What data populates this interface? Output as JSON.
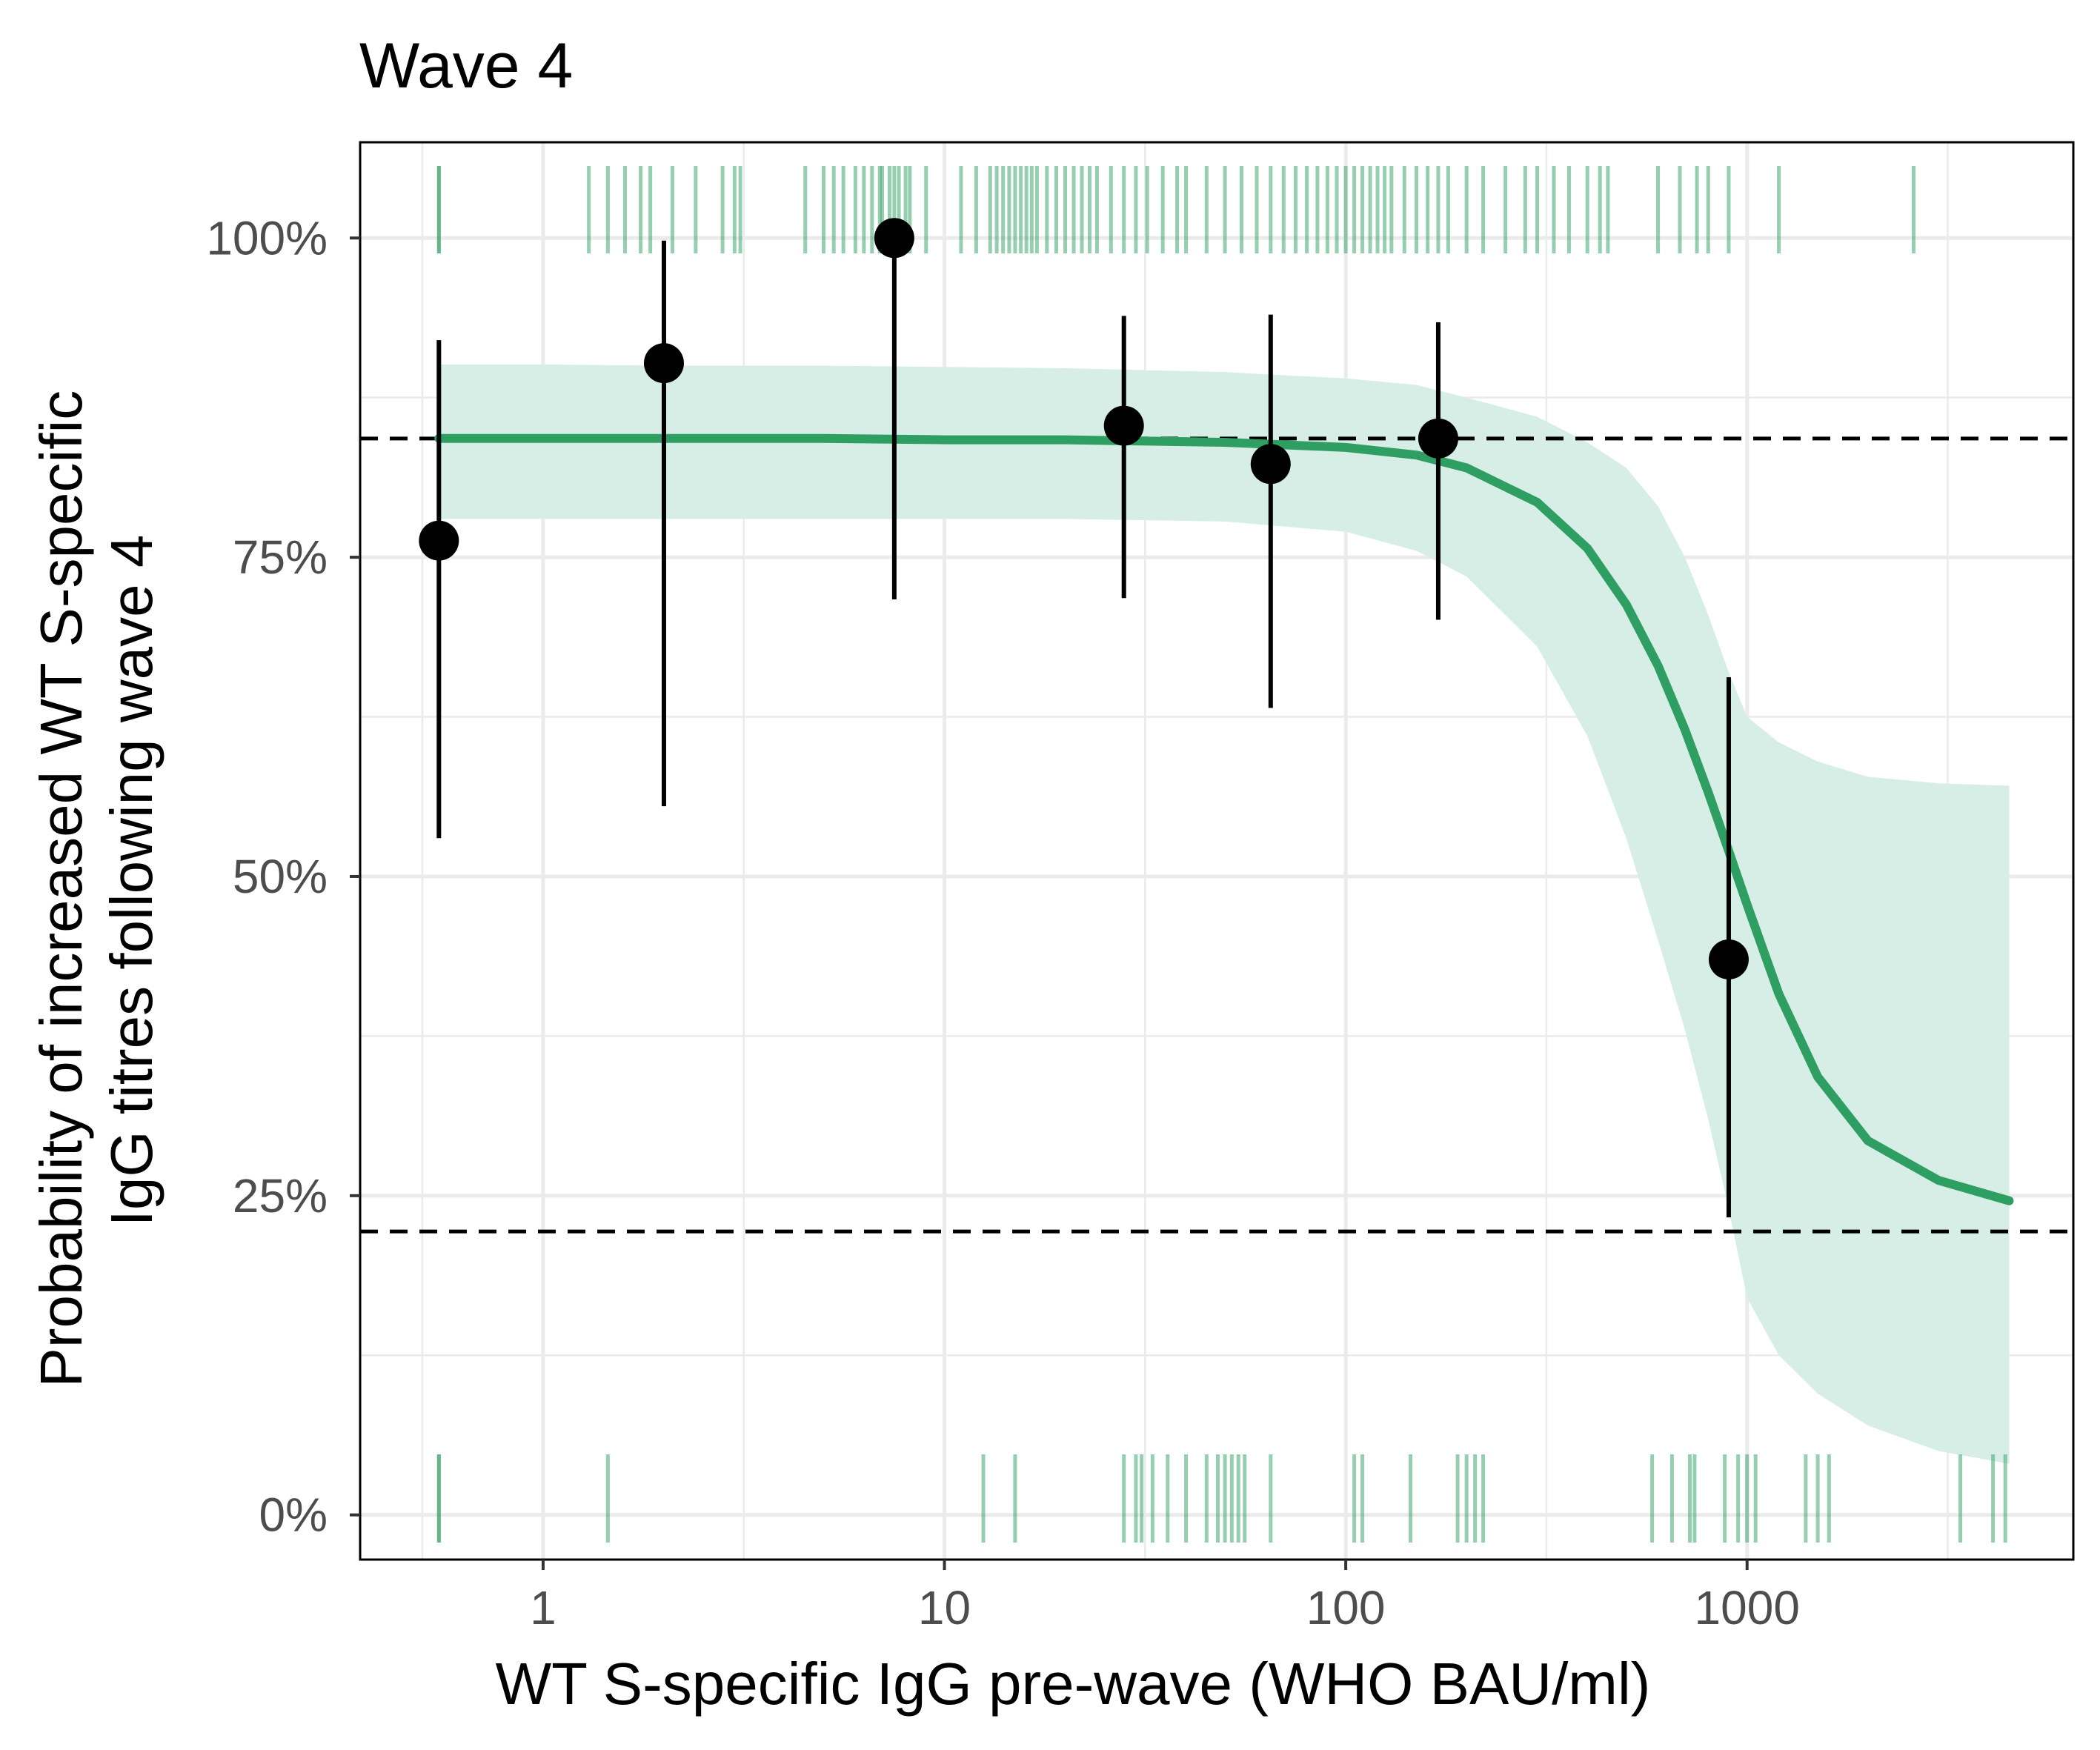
{
  "chart_data": {
    "type": "line",
    "title": "Wave 4",
    "xlabel": "WT S-specific IgG pre-wave (WHO BAU/ml)",
    "ylabel": [
      "Probability of increased WT S-specific",
      "IgG titres following wave 4"
    ],
    "x_scale": "log10",
    "xlim": [
      0.35,
      6500
    ],
    "ylim": [
      -0.035,
      1.075
    ],
    "x_ticks": [
      1,
      10,
      100,
      1000
    ],
    "x_tick_labels": [
      "1",
      "10",
      "100",
      "1000"
    ],
    "y_ticks": [
      0,
      0.25,
      0.5,
      0.75,
      1
    ],
    "y_tick_labels": [
      "0%",
      "25%",
      "50%",
      "75%",
      "100%"
    ],
    "grid": true,
    "legend": "none",
    "colors": {
      "curve": "#2e9e62",
      "ribbon": "#d6eee5",
      "rug": "#2e9e62",
      "points": "#000000",
      "reference_lines": "#000000",
      "grid": "#ebebeb"
    },
    "reference_lines_y": [
      0.843,
      0.222
    ],
    "fitted_curve": {
      "x": [
        0.55,
        1,
        2,
        5,
        10,
        20,
        50,
        100,
        150,
        200,
        300,
        400,
        500,
        600,
        700,
        800,
        900,
        1000,
        1200,
        1500,
        2000,
        3000,
        4500
      ],
      "y": [
        0.843,
        0.843,
        0.843,
        0.843,
        0.842,
        0.842,
        0.84,
        0.836,
        0.83,
        0.82,
        0.793,
        0.757,
        0.713,
        0.665,
        0.615,
        0.566,
        0.52,
        0.478,
        0.408,
        0.343,
        0.293,
        0.262,
        0.246
      ],
      "lower": [
        0.78,
        0.78,
        0.78,
        0.78,
        0.78,
        0.78,
        0.778,
        0.77,
        0.755,
        0.735,
        0.68,
        0.61,
        0.53,
        0.45,
        0.38,
        0.31,
        0.24,
        0.17,
        0.125,
        0.095,
        0.07,
        0.05,
        0.04
      ],
      "upper": [
        0.901,
        0.901,
        0.9,
        0.9,
        0.899,
        0.898,
        0.895,
        0.89,
        0.885,
        0.875,
        0.86,
        0.84,
        0.82,
        0.79,
        0.75,
        0.705,
        0.66,
        0.625,
        0.605,
        0.59,
        0.578,
        0.573,
        0.571
      ]
    },
    "binned_points": [
      {
        "x": 0.55,
        "y": 0.763,
        "lower": 0.53,
        "upper": 0.92
      },
      {
        "x": 2.0,
        "y": 0.902,
        "lower": 0.555,
        "upper": 0.998
      },
      {
        "x": 7.5,
        "y": 1.0,
        "lower": 0.717,
        "upper": 1.0
      },
      {
        "x": 28,
        "y": 0.853,
        "lower": 0.718,
        "upper": 0.939
      },
      {
        "x": 65,
        "y": 0.823,
        "lower": 0.632,
        "upper": 0.94
      },
      {
        "x": 170,
        "y": 0.843,
        "lower": 0.701,
        "upper": 0.934
      },
      {
        "x": 900,
        "y": 0.435,
        "lower": 0.233,
        "upper": 0.656
      }
    ],
    "rug_top_x": [
      0.55,
      0.55,
      1.3,
      1.45,
      1.6,
      1.75,
      1.85,
      2.1,
      2.4,
      2.8,
      3.0,
      3.1,
      4.5,
      5.0,
      5.3,
      5.6,
      6.0,
      6.3,
      6.6,
      6.9,
      7.0,
      7.3,
      7.5,
      7.7,
      8.0,
      8.2,
      9.0,
      11,
      12,
      13,
      13.5,
      14,
      14.5,
      15,
      15.5,
      16,
      16.5,
      17,
      18,
      19,
      20,
      21,
      22,
      23,
      24,
      26,
      28,
      30,
      32,
      35,
      38,
      40,
      45,
      50,
      55,
      60,
      65,
      70,
      75,
      80,
      85,
      90,
      95,
      100,
      105,
      110,
      115,
      120,
      125,
      130,
      140,
      150,
      160,
      170,
      180,
      200,
      220,
      250,
      280,
      300,
      330,
      360,
      400,
      430,
      450,
      600,
      680,
      750,
      800,
      900,
      1200,
      2600
    ],
    "rug_bottom_x": [
      0.55,
      0.55,
      1.45,
      12.5,
      15,
      28,
      30,
      31,
      33,
      36,
      40,
      45,
      48,
      50,
      52,
      54,
      56,
      65,
      105,
      110,
      145,
      190,
      200,
      210,
      220,
      580,
      650,
      720,
      740,
      880,
      950,
      1000,
      1050,
      1400,
      1500,
      1600,
      3400,
      4100,
      4400
    ]
  }
}
